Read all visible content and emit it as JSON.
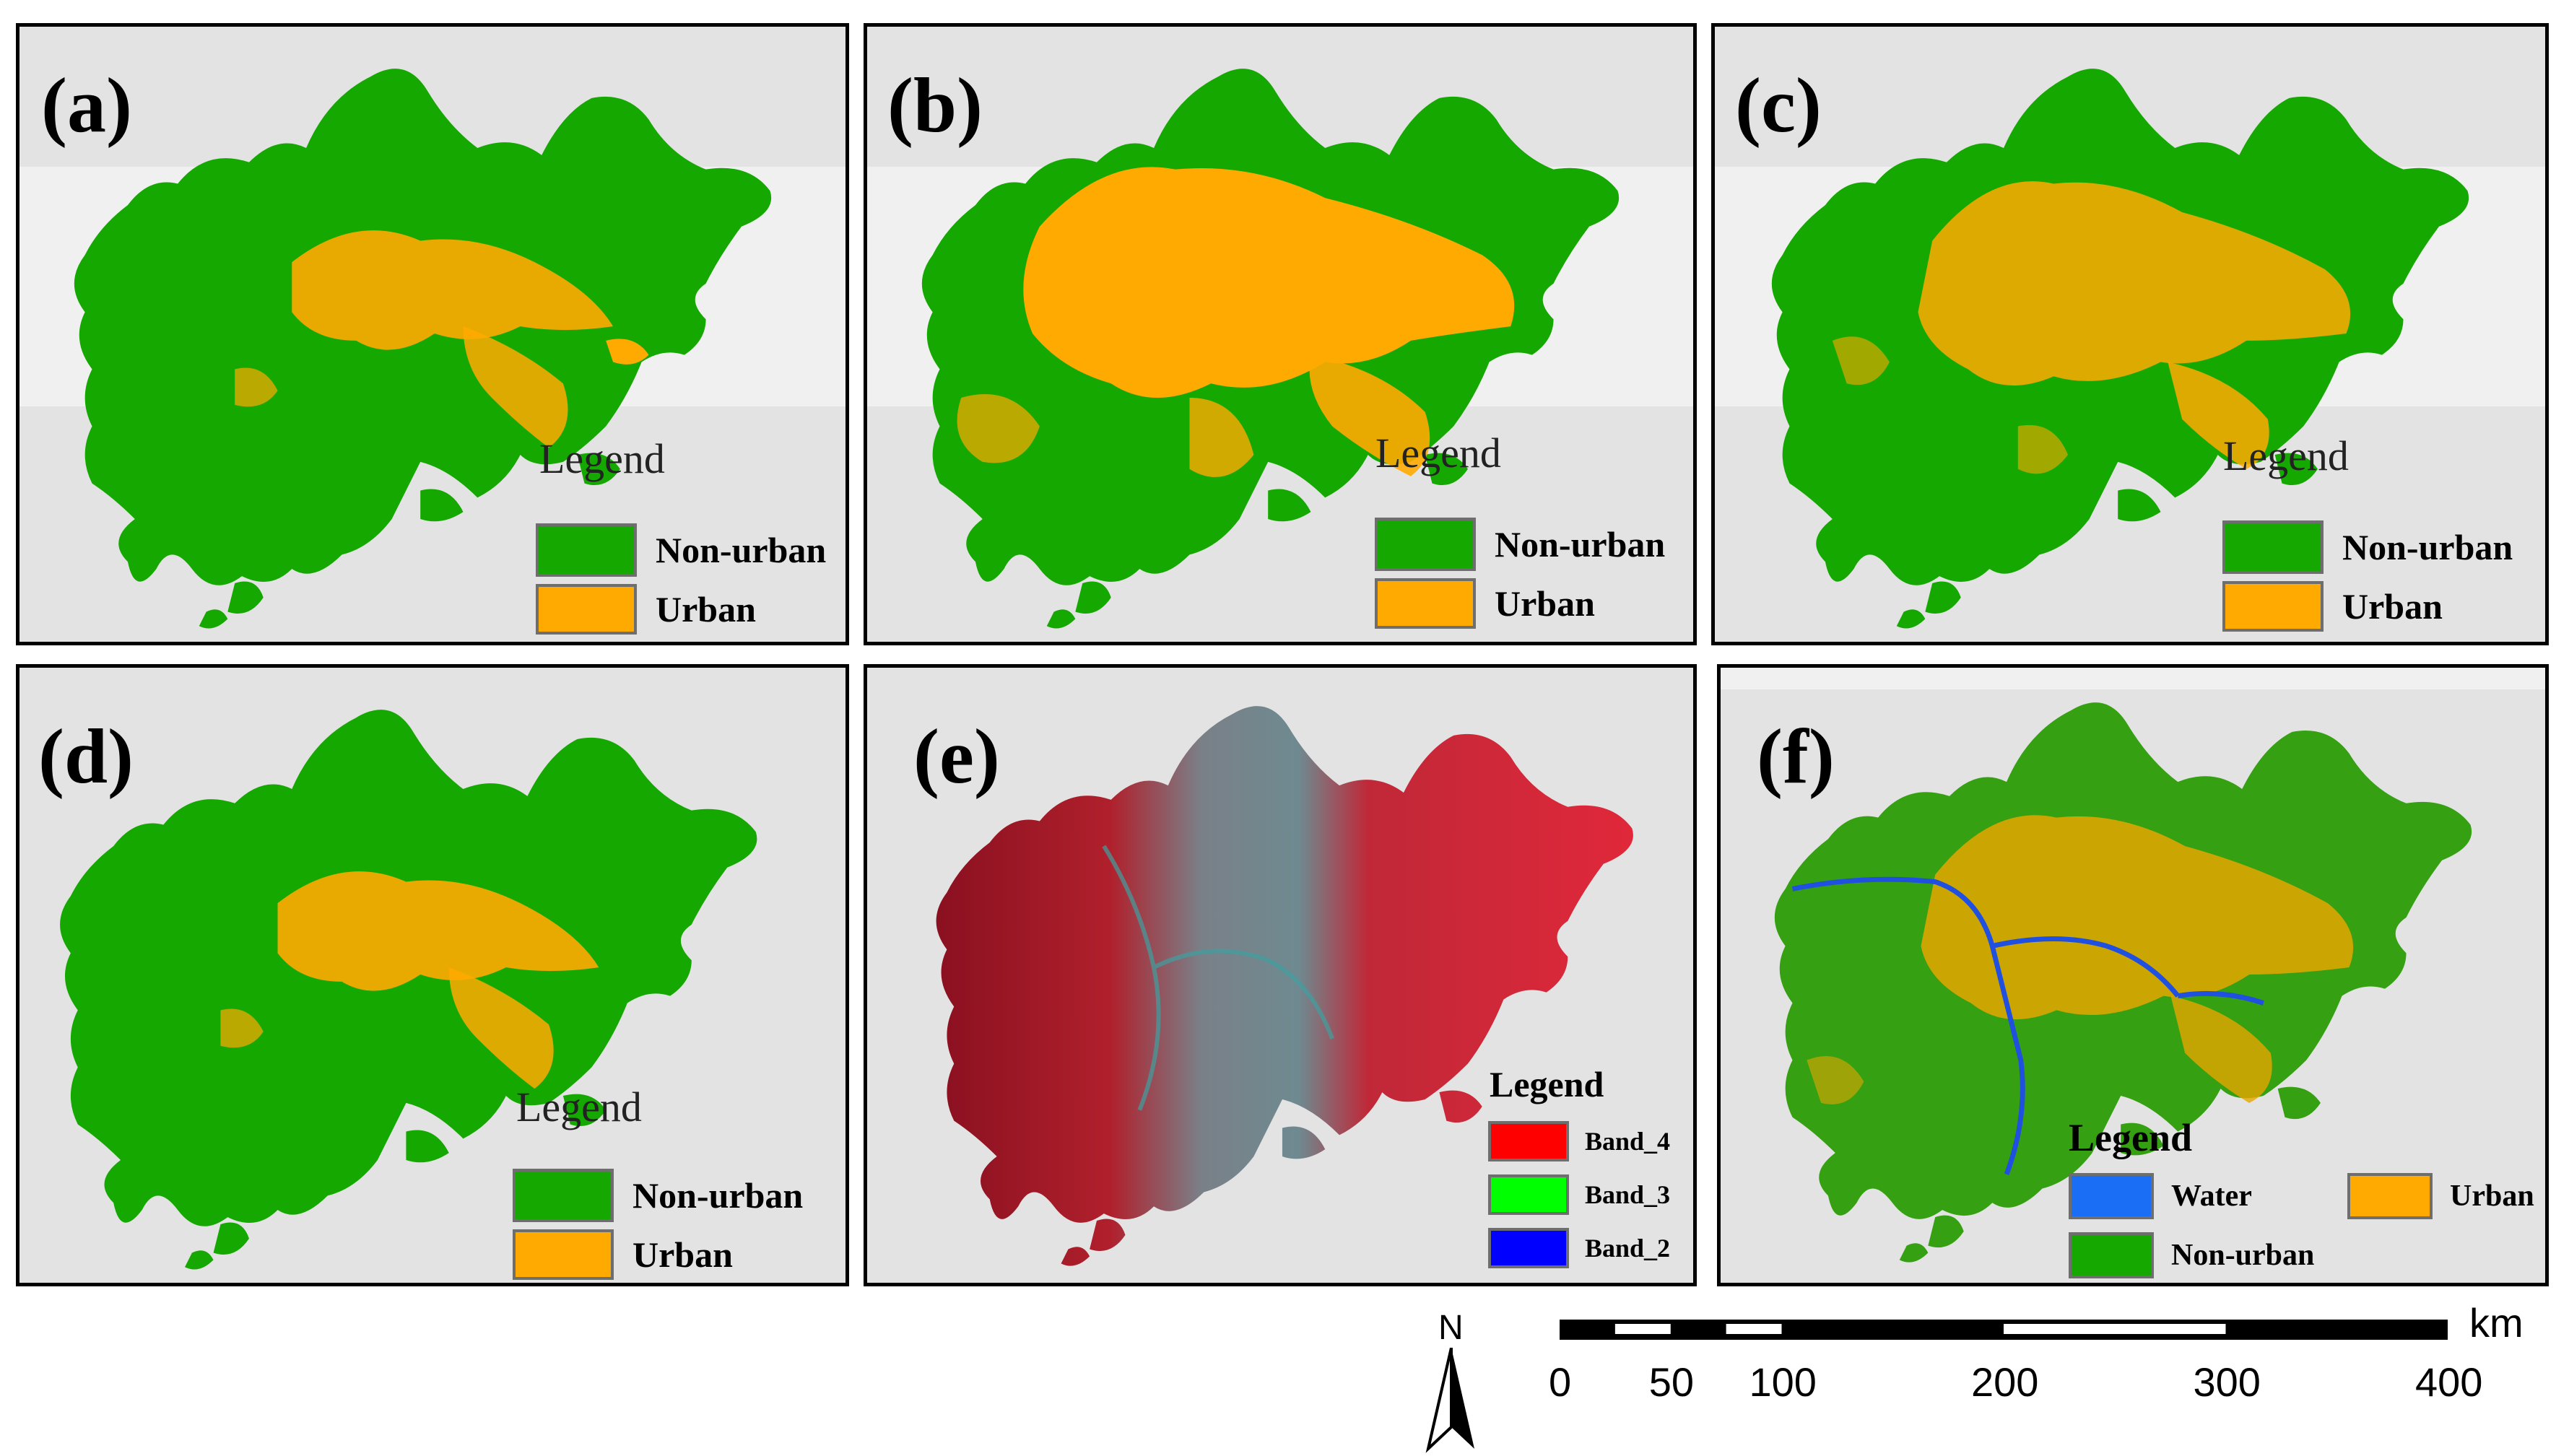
{
  "panels": [
    {
      "label": "(a)",
      "legend": {
        "title": "Legend",
        "items": [
          {
            "name": "Non-urban",
            "color": "#14a800"
          },
          {
            "name": "Urban",
            "color": "#ffaa00"
          }
        ]
      }
    },
    {
      "label": "(b)",
      "legend": {
        "title": "Legend",
        "items": [
          {
            "name": "Non-urban",
            "color": "#14a800"
          },
          {
            "name": "Urban",
            "color": "#ffaa00"
          }
        ]
      }
    },
    {
      "label": "(c)",
      "legend": {
        "title": "Legend",
        "items": [
          {
            "name": "Non-urban",
            "color": "#14a800"
          },
          {
            "name": "Urban",
            "color": "#ffaa00"
          }
        ]
      }
    },
    {
      "label": "(d)",
      "legend": {
        "title": "Legend",
        "items": [
          {
            "name": "Non-urban",
            "color": "#14a800"
          },
          {
            "name": "Urban",
            "color": "#ffaa00"
          }
        ]
      }
    },
    {
      "label": "(e)",
      "legend": {
        "title": "Legend",
        "items": [
          {
            "name": "Band_4",
            "color": "#ff0000"
          },
          {
            "name": "Band_3",
            "color": "#00ff00"
          },
          {
            "name": "Band_2",
            "color": "#0000ff"
          }
        ]
      }
    },
    {
      "label": "(f)",
      "legend": {
        "title": "Legend",
        "items": [
          {
            "name": "Water",
            "color": "#1a6ef5"
          },
          {
            "name": "Urban",
            "color": "#ffaa00"
          },
          {
            "name": "Non-urban",
            "color": "#14a800"
          }
        ]
      }
    }
  ],
  "north_arrow": {
    "label": "N"
  },
  "scale_bar": {
    "unit": "km",
    "ticks": [
      "0",
      "50",
      "100",
      "200",
      "300",
      "400"
    ]
  }
}
